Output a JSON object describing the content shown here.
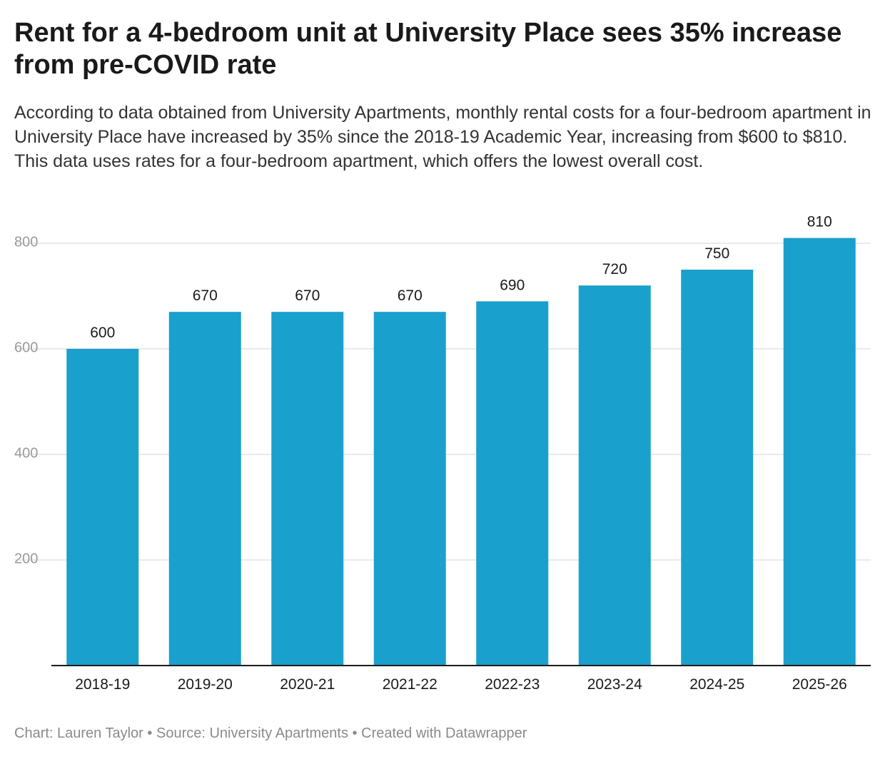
{
  "title": "Rent for a 4-bedroom unit at University Place sees 35% increase from pre-COVID rate",
  "description": "According to data obtained from University Apartments, monthly rental costs for a four-bedroom apartment in University Place have increased by 35% since the 2018-19 Academic Year, increasing from $600 to $810. This data uses rates for a four-bedroom apartment, which offers the lowest overall cost.",
  "footer": {
    "chart": "Chart: Lauren Taylor",
    "separator": "•",
    "source": "Source: University Apartments",
    "created": "Created with Datawrapper"
  },
  "chart_data": {
    "type": "bar",
    "categories": [
      "2018-19",
      "2019-20",
      "2020-21",
      "2021-22",
      "2022-23",
      "2023-24",
      "2024-25",
      "2025-26"
    ],
    "values": [
      600,
      670,
      670,
      670,
      690,
      720,
      750,
      810
    ],
    "ylim": [
      0,
      800
    ],
    "yticks": [
      200,
      400,
      600,
      800
    ],
    "grid": true,
    "data_labels": true,
    "bar_color": "#1aa0cc"
  }
}
